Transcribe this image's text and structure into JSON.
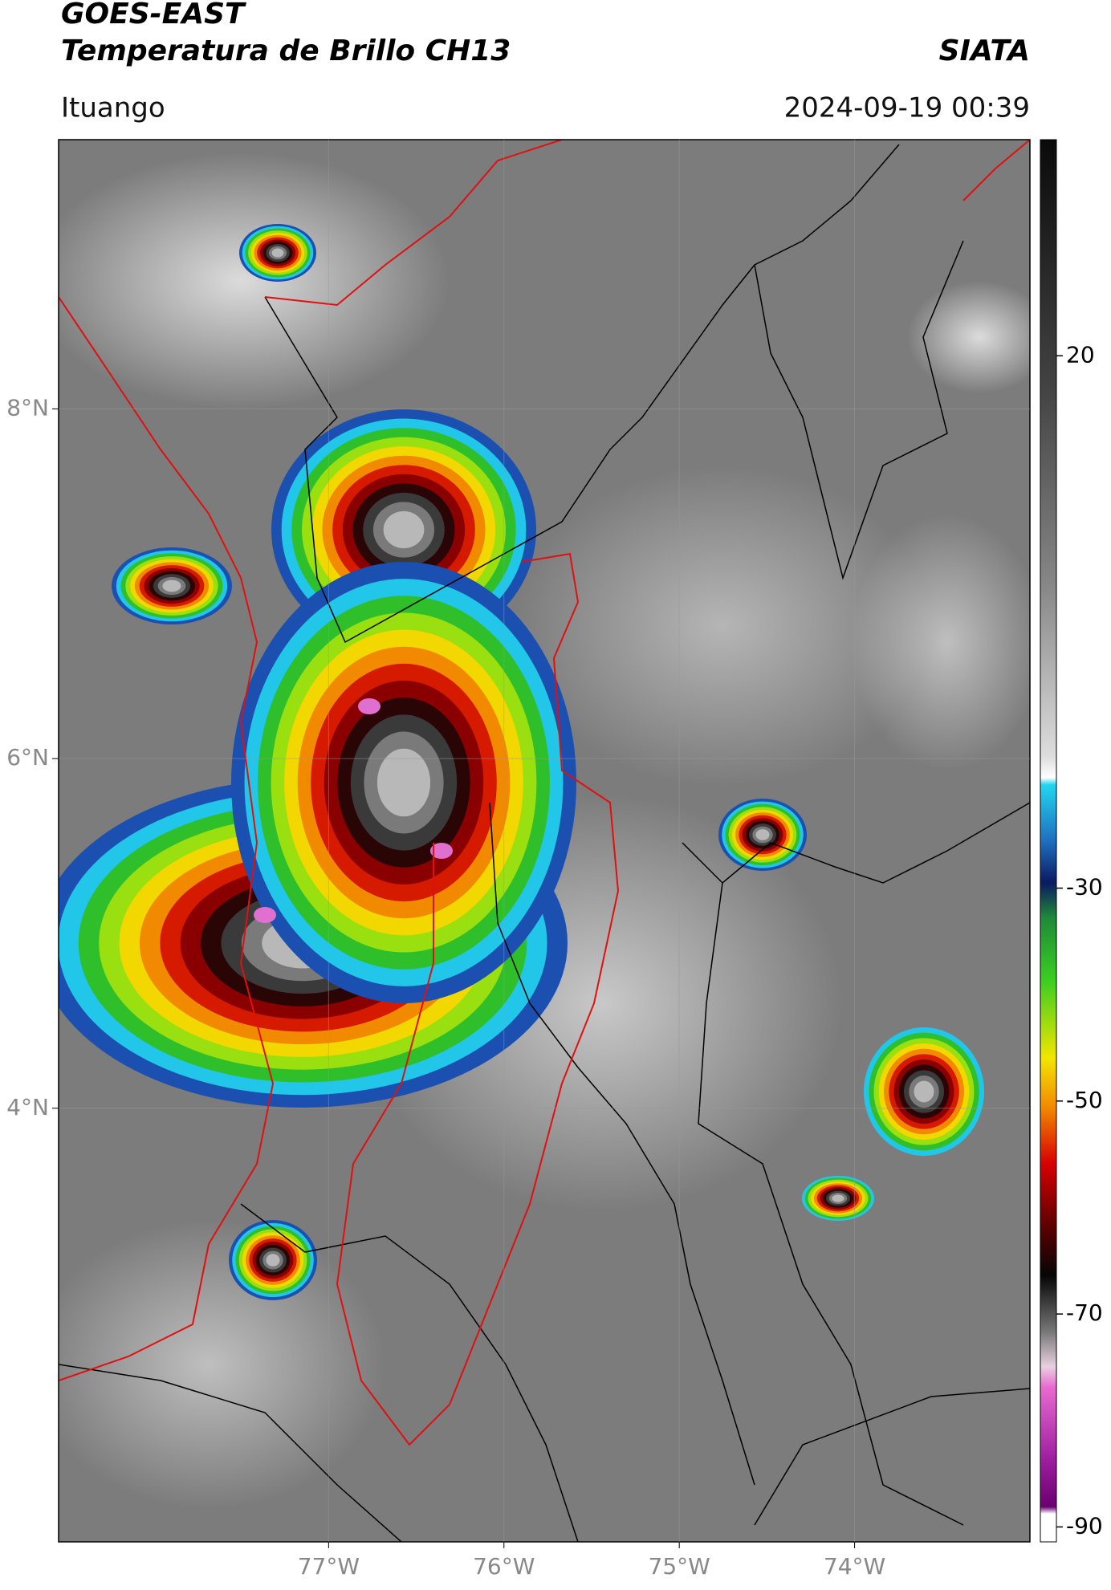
{
  "header": {
    "title_line1": "GOES-EAST",
    "title_line2": "Temperatura de Brillo CH13",
    "agency": "SIATA",
    "location": "Ituango",
    "datetime": "2024-09-19 00:39"
  },
  "map": {
    "xlim": [
      -78.54,
      -73.0
    ],
    "ylim": [
      1.52,
      9.54
    ],
    "xticks": [
      {
        "value": -77,
        "label": "77°W"
      },
      {
        "value": -76,
        "label": "76°W"
      },
      {
        "value": -75,
        "label": "75°W"
      },
      {
        "value": -74,
        "label": "74°W"
      }
    ],
    "yticks": [
      {
        "value": 4,
        "label": "4°N"
      },
      {
        "value": 6,
        "label": "6°N"
      },
      {
        "value": 8,
        "label": "8°N"
      }
    ]
  },
  "colorbar": {
    "lim": [
      -91.4,
      40.3
    ],
    "ticks": [
      -90,
      -70,
      -50,
      -30,
      20
    ]
  }
}
